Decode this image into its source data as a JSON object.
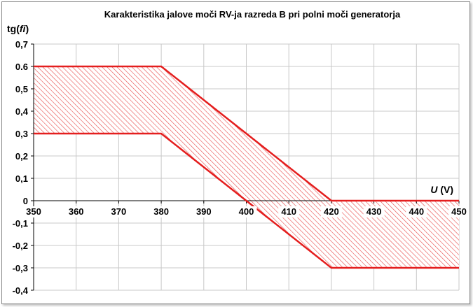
{
  "chart_data": {
    "type": "area",
    "title": "Karakteristika jalove moči RV-ja razreda B pri polni moči generatorja",
    "ylabel": "tg(fi)",
    "xlabel": "U (V)",
    "xlim": [
      350,
      450
    ],
    "ylim": [
      -0.4,
      0.7
    ],
    "x_ticks": [
      "350",
      "360",
      "370",
      "380",
      "390",
      "400",
      "410",
      "420",
      "430",
      "440",
      "450"
    ],
    "y_ticks": [
      "0,7",
      "0.6",
      "0,5",
      "0,4",
      "0,3",
      "0,2",
      "0,1",
      "0",
      "-0,1",
      "-0,2",
      "-0,3",
      "-0,4"
    ],
    "grid": true,
    "series": [
      {
        "x": [
          350,
          380,
          420,
          450
        ],
        "values": [
          0.6,
          0.6,
          0.0,
          0.0
        ]
      },
      {
        "x": [
          350,
          380,
          420,
          450
        ],
        "values": [
          0.3,
          0.3,
          -0.3,
          -0.3
        ]
      }
    ],
    "fill": "hatched band between the two lines",
    "colors": {
      "line": "#e41e1e",
      "hatch": "#e84a4a",
      "grid": "#c8c8c8"
    }
  }
}
